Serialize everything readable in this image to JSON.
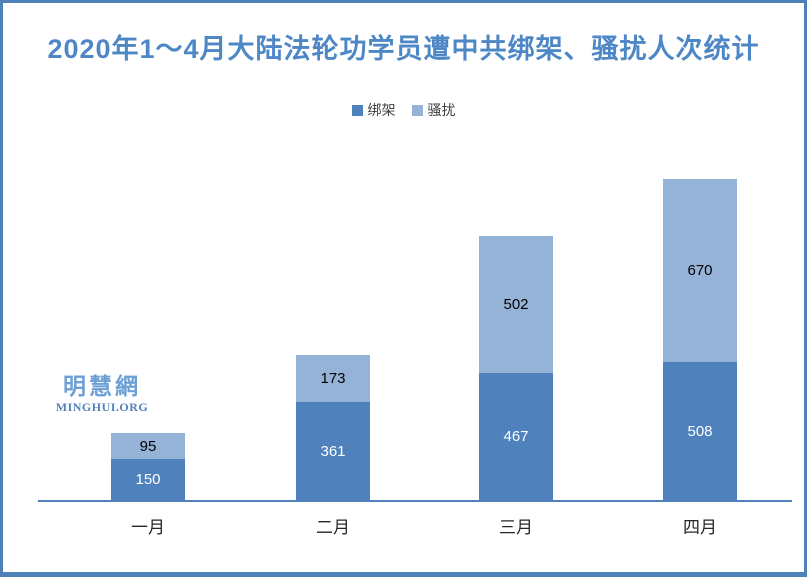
{
  "title": {
    "text": "2020年1～4月大陆法轮功学员遭中共绑架、骚扰人次统计",
    "color": "#4E87C5"
  },
  "legend": {
    "items": [
      {
        "label": "绑架",
        "color": "#4F81BD"
      },
      {
        "label": "骚扰",
        "color": "#95B3D7"
      }
    ]
  },
  "watermark": {
    "cn": "明慧網",
    "en": "MINGHUI.ORG"
  },
  "chart_data": {
    "type": "bar",
    "stacked": true,
    "title": "2020年1～4月大陆法轮功学员遭中共绑架、骚扰人次统计",
    "categories": [
      "一月",
      "二月",
      "三月",
      "四月"
    ],
    "series": [
      {
        "name": "绑架",
        "color": "#4F81BD",
        "label_color": "#FFFFFF",
        "values": [
          150,
          361,
          467,
          508
        ]
      },
      {
        "name": "骚扰",
        "color": "#95B3D7",
        "label_color": "#000000",
        "values": [
          95,
          173,
          502,
          670
        ]
      }
    ],
    "totals": [
      245,
      534,
      969,
      1178
    ],
    "data_labels": true,
    "legend_position": "top-center",
    "grid": false,
    "axis_color": "#4F81BD",
    "ylim": [
      0,
      1250
    ],
    "frame_color": "#4E81B8",
    "background": "#FFFFFF"
  }
}
